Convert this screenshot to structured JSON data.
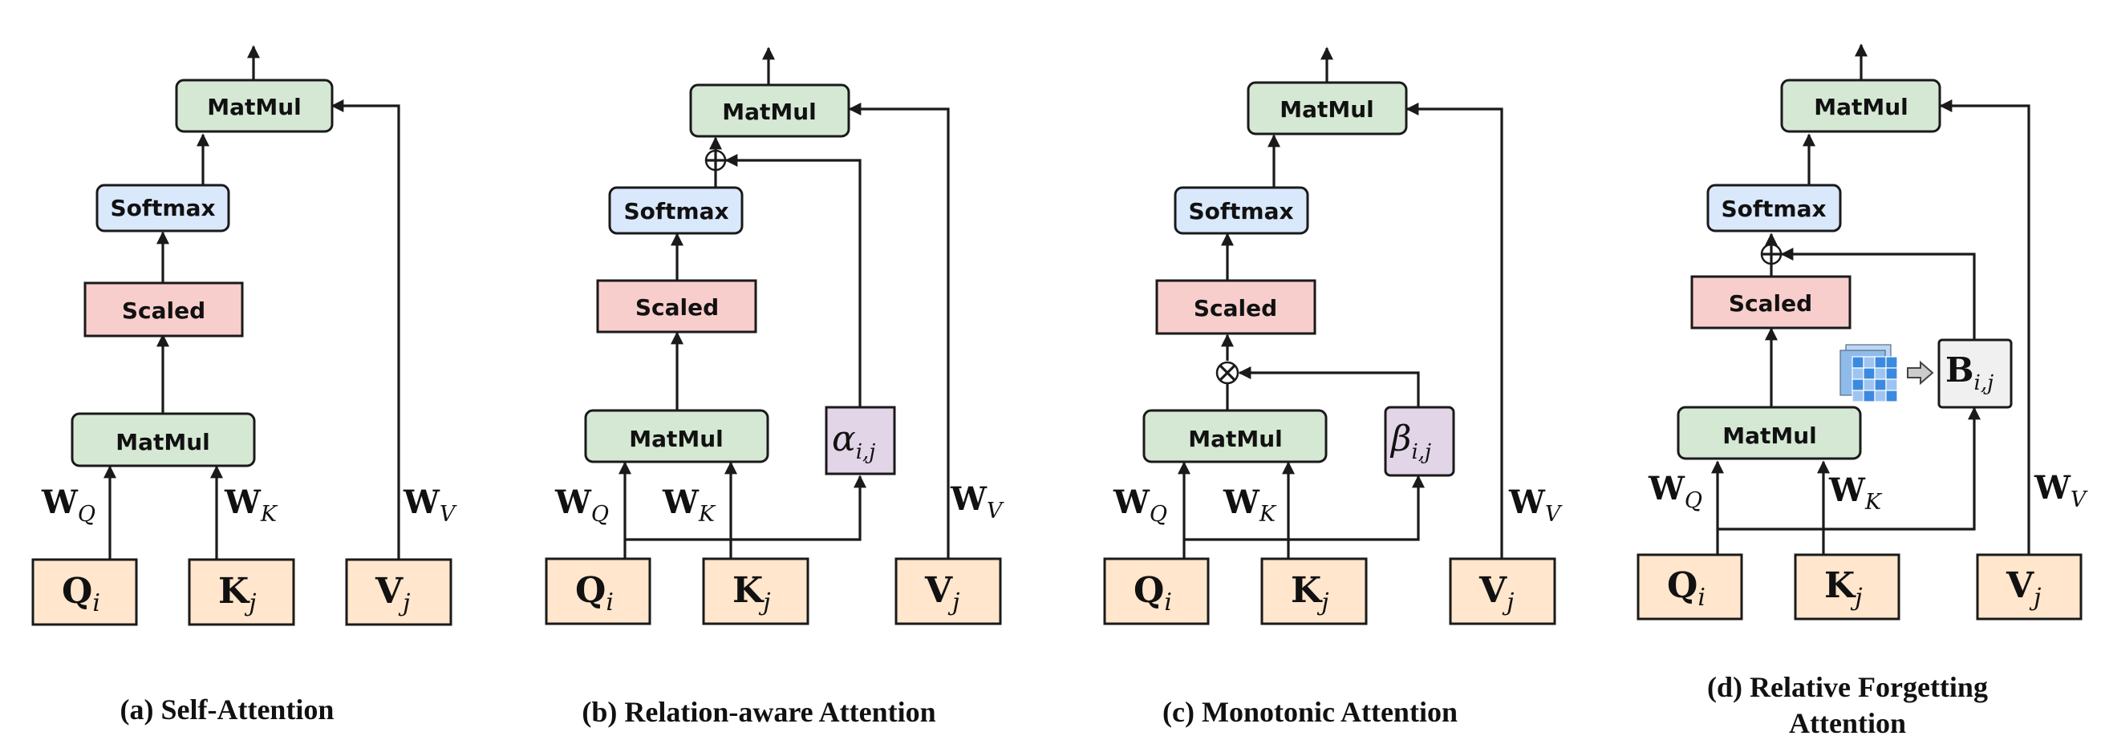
{
  "labels": {
    "matmul": "MatMul",
    "softmax": "Softmax",
    "scaled": "Scaled"
  },
  "inputs": {
    "q": "Q",
    "q_sub": "i",
    "k": "K",
    "k_sub": "j",
    "v": "V",
    "v_sub": "j"
  },
  "weights": {
    "w": "W",
    "q_sub": "Q",
    "k_sub": "K",
    "v_sub": "V"
  },
  "extras": {
    "alpha": "α",
    "alpha_sub": "i,j",
    "beta": "β",
    "beta_sub": "i,j",
    "b": "B",
    "b_sub": "i,j"
  },
  "captions": {
    "a": "(a) Self-Attention",
    "b": "(b) Relation-aware Attention",
    "c": "(c) Monotonic Attention",
    "d_line1": "(d) Relative Forgetting",
    "d_line2": "Attention"
  },
  "colors": {
    "matmul": "#d5e8d4",
    "softmax": "#dae8fc",
    "scaled": "#f8cecc",
    "input": "#ffe6cc",
    "extra": "#e1d5e7"
  }
}
